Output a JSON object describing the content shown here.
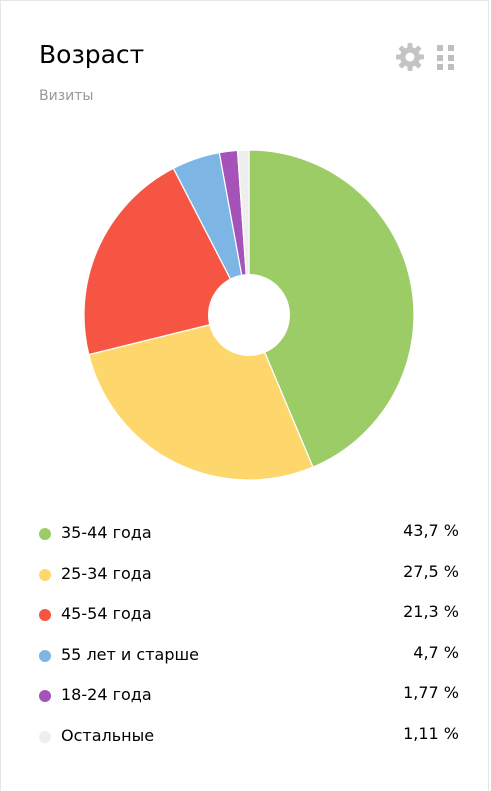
{
  "widget": {
    "title": "Возраст",
    "subtitle": "Визиты",
    "settings_icon": "gear-icon",
    "drag_icon": "grip-icon"
  },
  "chart_data": {
    "type": "pie",
    "title": "Возраст",
    "subtitle": "Визиты",
    "donut": true,
    "legend_position": "bottom",
    "slices": [
      {
        "label": "35-44 года",
        "value": 43.7,
        "display": "43,7 %",
        "color": "#9ccc65"
      },
      {
        "label": "25-34 года",
        "value": 27.5,
        "display": "27,5 %",
        "color": "#fdd76b"
      },
      {
        "label": "45-54 года",
        "value": 21.3,
        "display": "21,3 %",
        "color": "#f55542"
      },
      {
        "label": "55 лет и старше",
        "value": 4.7,
        "display": "4,7 %",
        "color": "#7db6e5"
      },
      {
        "label": "18-24 года",
        "value": 1.77,
        "display": "1,77 %",
        "color": "#a553b9"
      },
      {
        "label": "Остальные",
        "value": 1.11,
        "display": "1,11 %",
        "color": "#eeeeee"
      }
    ]
  }
}
